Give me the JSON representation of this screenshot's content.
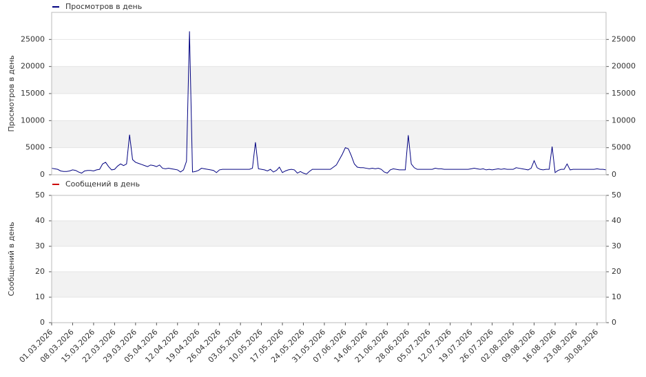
{
  "chart_data": [
    {
      "type": "line",
      "ylabel": "Просмотров в день",
      "ylim": [
        0,
        30000
      ],
      "yticks": [
        0,
        5000,
        10000,
        15000,
        20000,
        25000
      ],
      "grid": true,
      "series": [
        {
          "name": "Просмотров в день",
          "color": "#000080",
          "values": [
            1200,
            1100,
            1000,
            700,
            600,
            600,
            700,
            900,
            800,
            500,
            300,
            700,
            800,
            800,
            700,
            900,
            1000,
            2000,
            2300,
            1500,
            900,
            1000,
            1600,
            2000,
            1700,
            2000,
            7400,
            2800,
            2300,
            2100,
            1900,
            1700,
            1500,
            1800,
            1700,
            1500,
            1800,
            1200,
            1100,
            1200,
            1100,
            1000,
            900,
            500,
            900,
            2500,
            26500,
            500,
            600,
            800,
            1200,
            1100,
            1000,
            900,
            800,
            400,
            900,
            1000,
            1000,
            1000,
            1000,
            1000,
            1000,
            1000,
            1000,
            1000,
            1000,
            1200,
            6000,
            1100,
            1000,
            900,
            700,
            1000,
            500,
            800,
            1400,
            400,
            700,
            900,
            1000,
            900,
            300,
            600,
            300,
            100,
            600,
            1000,
            1000,
            1000,
            1000,
            1000,
            1000,
            1000,
            1400,
            1800,
            2800,
            3800,
            5000,
            4800,
            3500,
            2000,
            1400,
            1300,
            1300,
            1200,
            1100,
            1200,
            1100,
            1200,
            1000,
            500,
            300,
            900,
            1100,
            1000,
            900,
            900,
            900,
            7300,
            2000,
            1300,
            1000,
            1000,
            1000,
            1000,
            1000,
            1000,
            1200,
            1100,
            1100,
            1000,
            1000,
            1000,
            1000,
            1000,
            1000,
            1000,
            1000,
            1000,
            1100,
            1200,
            1100,
            1000,
            1100,
            900,
            1000,
            900,
            1000,
            1100,
            1000,
            1100,
            1000,
            1000,
            1000,
            1300,
            1200,
            1100,
            1000,
            900,
            1200,
            2600,
            1300,
            1000,
            900,
            1000,
            1000,
            5200,
            400,
            800,
            1000,
            1000,
            2000,
            900,
            1000,
            1000,
            1000,
            1000,
            1000,
            1000,
            1000,
            1000,
            1100,
            1000,
            1000,
            900
          ]
        }
      ]
    },
    {
      "type": "line",
      "ylabel": "Сообщений в день",
      "ylim": [
        0,
        50
      ],
      "yticks": [
        0,
        10,
        20,
        30,
        40,
        50
      ],
      "grid": true,
      "categories": [
        "01.03.2026",
        null,
        null,
        null,
        null,
        null,
        null,
        "08.03.2026",
        null,
        null,
        null,
        null,
        null,
        null,
        "15.03.2026",
        null,
        null,
        null,
        null,
        null,
        null,
        "22.03.2026",
        null,
        null,
        null,
        null,
        null,
        null,
        "29.03.2026",
        null,
        null,
        null,
        null,
        null,
        null,
        "05.04.2026",
        null,
        null,
        null,
        null,
        null,
        null,
        "12.04.2026",
        null,
        null,
        null,
        null,
        null,
        null,
        "19.04.2026",
        null,
        null,
        null,
        null,
        null,
        null,
        "26.04.2026",
        null,
        null,
        null,
        null,
        null,
        null,
        "03.05.2026",
        null,
        null,
        null,
        null,
        null,
        null,
        "10.05.2026",
        null,
        null,
        null,
        null,
        null,
        null,
        "17.05.2026",
        null,
        null,
        null,
        null,
        null,
        null,
        "24.05.2026",
        null,
        null,
        null,
        null,
        null,
        null,
        "31.05.2026",
        null,
        null,
        null,
        null,
        null,
        null,
        "07.06.2026",
        null,
        null,
        null,
        null,
        null,
        null,
        "14.06.2026",
        null,
        null,
        null,
        null,
        null,
        null,
        "21.06.2026",
        null,
        null,
        null,
        null,
        null,
        null,
        "28.06.2026",
        null,
        null,
        null,
        null,
        null,
        null,
        "05.07.2026",
        null,
        null,
        null,
        null,
        null,
        null,
        "12.07.2026",
        null,
        null,
        null,
        null,
        null,
        null,
        "19.07.2026",
        null,
        null,
        null,
        null,
        null,
        null,
        "26.07.2026",
        null,
        null,
        null,
        null,
        null,
        null,
        "02.08.2026",
        null,
        null,
        null,
        null,
        null,
        null,
        "09.08.2026",
        null,
        null,
        null,
        null,
        null,
        null,
        "16.08.2026",
        null,
        null,
        null,
        null,
        null,
        null,
        "23.08.2026",
        null,
        null,
        null,
        null,
        null,
        null,
        "30.08.2026",
        null,
        null,
        null
      ],
      "series": [
        {
          "name": "Сообщений в день",
          "color": "#cc0000",
          "values": [
            0,
            0,
            0,
            0,
            0,
            0,
            0,
            0,
            0,
            0,
            0,
            0,
            0,
            0,
            0,
            0,
            0,
            0,
            0,
            0,
            0,
            0,
            0,
            0,
            0,
            0,
            0,
            0,
            0,
            0,
            0,
            0,
            0,
            0,
            0,
            0,
            0,
            0,
            0,
            0,
            0,
            0,
            0,
            0,
            0,
            0,
            0,
            0,
            0,
            0,
            0,
            0,
            0,
            0,
            0,
            0,
            0,
            0,
            0,
            0,
            0,
            0,
            0,
            0,
            0,
            0,
            0,
            0,
            0,
            0,
            0,
            0,
            0,
            0,
            0,
            0,
            0,
            0,
            0,
            0,
            0,
            0,
            0,
            0,
            0,
            0,
            0,
            0,
            0,
            0,
            0,
            0,
            0,
            0,
            0,
            0,
            0,
            0,
            0,
            0,
            0,
            0,
            0,
            0,
            0,
            0,
            0,
            0,
            0,
            0,
            0,
            0,
            0,
            0,
            0,
            0,
            0,
            0,
            0,
            0,
            0,
            0,
            0,
            0,
            0,
            0,
            0,
            0,
            0,
            0,
            0,
            0,
            0,
            0,
            0,
            0,
            0,
            0,
            0,
            0,
            0,
            0,
            0,
            0,
            0,
            0,
            0,
            0,
            0,
            0,
            0,
            0,
            0,
            0,
            0,
            0,
            0,
            0,
            0,
            0,
            0,
            0,
            0,
            0,
            0,
            0,
            0,
            0,
            0,
            0,
            0,
            0,
            0,
            0,
            0,
            0,
            0,
            0,
            0,
            0,
            0,
            0,
            0,
            0,
            0,
            0
          ]
        }
      ]
    }
  ]
}
